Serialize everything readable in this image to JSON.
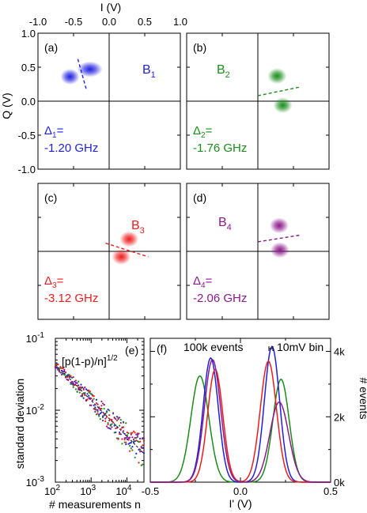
{
  "top_axis": {
    "label": "I (V)",
    "ticks": [
      "-1.0",
      "-0.5",
      "0.0",
      "0.5",
      "1.0"
    ]
  },
  "left_axis": {
    "label": "Q (V)",
    "ticks": [
      "1.0",
      "0.5",
      "0.0",
      "-0.5",
      "-1.0"
    ]
  },
  "chart_data": [
    {
      "type": "scatter",
      "panel": "(a)",
      "state_label": "B",
      "state_sub": "1",
      "delta_line1": "Δ",
      "delta_sub": "1",
      "delta_eq": "=",
      "delta_line2": "-1.20 GHz",
      "color": "#1f1fe0",
      "blobs": [
        [
          -0.55,
          0.36
        ],
        [
          -0.27,
          0.47
        ]
      ],
      "divider": [
        [
          -0.44,
          0.62
        ],
        [
          -0.32,
          0.17
        ]
      ],
      "xlim": [
        -1,
        1
      ],
      "ylim": [
        -1,
        1
      ]
    },
    {
      "type": "scatter",
      "panel": "(b)",
      "state_label": "B",
      "state_sub": "2",
      "delta_line1": "Δ",
      "delta_sub": "2",
      "delta_eq": "=",
      "delta_line2": "-1.76 GHz",
      "color": "#1a8c1a",
      "blobs": [
        [
          0.27,
          0.37
        ],
        [
          0.35,
          -0.06
        ]
      ],
      "divider": [
        [
          0.0,
          0.08
        ],
        [
          0.6,
          0.21
        ]
      ],
      "xlim": [
        -1,
        1
      ],
      "ylim": [
        -1,
        1
      ]
    },
    {
      "type": "scatter",
      "panel": "(c)",
      "state_label": "B",
      "state_sub": "3",
      "delta_line1": "Δ",
      "delta_sub": "3",
      "delta_eq": "=",
      "delta_line2": "-3.12 GHz",
      "color": "#ee1c1c",
      "blobs": [
        [
          0.28,
          0.18
        ],
        [
          0.17,
          -0.08
        ]
      ],
      "divider": [
        [
          -0.05,
          0.12
        ],
        [
          0.55,
          -0.08
        ]
      ],
      "xlim": [
        -1,
        1
      ],
      "ylim": [
        -1,
        1
      ]
    },
    {
      "type": "scatter",
      "panel": "(d)",
      "state_label": "B",
      "state_sub": "4",
      "delta_line1": "Δ",
      "delta_sub": "4",
      "delta_eq": "=",
      "delta_line2": "-2.06 GHz",
      "color": "#8b1a8b",
      "blobs": [
        [
          0.3,
          0.38
        ],
        [
          0.31,
          0.02
        ]
      ],
      "divider": [
        [
          0.0,
          0.14
        ],
        [
          0.6,
          0.24
        ]
      ],
      "xlim": [
        -1,
        1
      ],
      "ylim": [
        -1,
        1
      ]
    },
    {
      "type": "scatter",
      "panel": "(e)",
      "ylabel": "standard deviation",
      "xlabel": "# measurements n",
      "annotation": "[p(1-p)/n]",
      "annotation_sup": "1/2",
      "log_x": true,
      "log_y": true,
      "xlim": [
        100,
        30000
      ],
      "ylim": [
        0.001,
        0.1
      ],
      "x_ticks": [
        {
          "base": "10",
          "exp": "2"
        },
        {
          "base": "10",
          "exp": "3"
        },
        {
          "base": "10",
          "exp": "4"
        }
      ],
      "y_ticks": [
        {
          "base": "10",
          "exp": "-1"
        },
        {
          "base": "10",
          "exp": "-2"
        },
        {
          "base": "10",
          "exp": "-3"
        }
      ],
      "p": 0.25,
      "series_colors": [
        "#1f1fe0",
        "#1a8c1a",
        "#ee1c1c",
        "#8b1a8b"
      ]
    },
    {
      "type": "line",
      "panel": "(f)",
      "xlabel": "I' (V)",
      "ylabel": "# events",
      "annotation_left": "100k events",
      "annotation_right": "10mV bin",
      "xlim": [
        -0.5,
        0.5
      ],
      "ylim": [
        0,
        4400
      ],
      "x_ticks": [
        "-0.5",
        "0.0",
        "0.5"
      ],
      "y_ticks": [
        "0k",
        "2k",
        "4k"
      ],
      "series": [
        {
          "color": "#1a8c1a",
          "peaks": [
            [
              -0.225,
              0.05,
              3250
            ],
            [
              0.225,
              0.045,
              3150
            ]
          ]
        },
        {
          "color": "#1f1fe0",
          "peaks": [
            [
              -0.165,
              0.042,
              3800
            ],
            [
              0.175,
              0.042,
              4150
            ]
          ]
        },
        {
          "color": "#ee1c1c",
          "peaks": [
            [
              -0.14,
              0.042,
              3450
            ],
            [
              0.155,
              0.045,
              3700
            ]
          ]
        },
        {
          "color": "#8b1a8b",
          "peaks": [
            [
              -0.155,
              0.045,
              3750
            ],
            [
              0.215,
              0.052,
              2450
            ]
          ]
        }
      ]
    }
  ]
}
